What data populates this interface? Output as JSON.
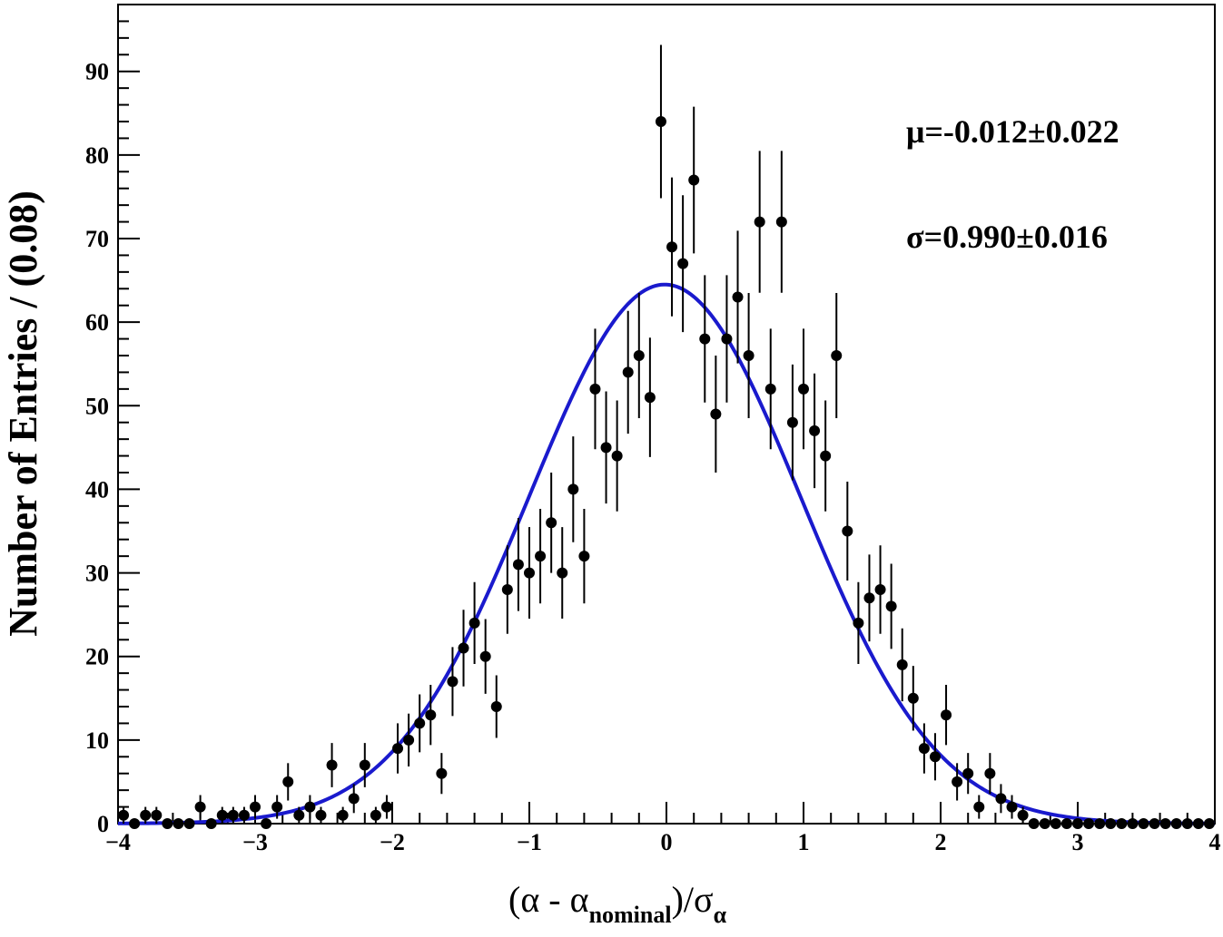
{
  "chart_data": {
    "type": "scatter",
    "xlabel_parts": {
      "a": "(α -  α",
      "sub1": "nominal",
      "b": ")/σ",
      "sub2": "α"
    },
    "ylabel": "Number of Entries / (0.08)",
    "xlim": [
      -4,
      4
    ],
    "ylim": [
      0,
      98
    ],
    "xticks": [
      -4,
      -3,
      -2,
      -1,
      0,
      1,
      2,
      3,
      4
    ],
    "xtick_labels": [
      "−4",
      "−3",
      "−2",
      "−1",
      "0",
      "1",
      "2",
      "3",
      "4"
    ],
    "yticks": [
      0,
      10,
      20,
      30,
      40,
      50,
      60,
      70,
      80,
      90
    ],
    "ytick_labels": [
      "0",
      "10",
      "20",
      "30",
      "40",
      "50",
      "60",
      "70",
      "80",
      "90"
    ],
    "annotations": {
      "mu": "μ=-0.012±0.022",
      "sigma": "σ=0.990±0.016"
    },
    "bin_width": 0.08,
    "bin_start": -4.0,
    "counts": [
      1,
      0,
      1,
      1,
      0,
      0,
      0,
      2,
      0,
      1,
      1,
      1,
      2,
      0,
      2,
      5,
      1,
      2,
      1,
      7,
      1,
      3,
      7,
      1,
      2,
      9,
      10,
      12,
      13,
      6,
      17,
      21,
      24,
      20,
      14,
      28,
      31,
      30,
      32,
      36,
      30,
      40,
      32,
      52,
      45,
      44,
      54,
      56,
      51,
      84,
      69,
      67,
      77,
      58,
      49,
      58,
      63,
      56,
      72,
      52,
      72,
      48,
      52,
      47,
      44,
      56,
      35,
      24,
      27,
      28,
      26,
      19,
      15,
      9,
      8,
      13,
      5,
      6,
      2,
      6,
      3,
      2,
      1,
      0,
      0,
      0,
      0,
      0,
      0,
      0,
      0,
      0,
      0,
      0,
      0,
      0,
      0,
      0,
      0,
      0
    ],
    "series": [
      {
        "name": "",
        "kind": "data_points",
        "color": "#000000"
      },
      {
        "name": "",
        "kind": "gaussian_fit",
        "color": "#1a1acd",
        "mu": -0.012,
        "sigma": 0.99,
        "amplitude": 64.5
      }
    ],
    "grid": false
  }
}
